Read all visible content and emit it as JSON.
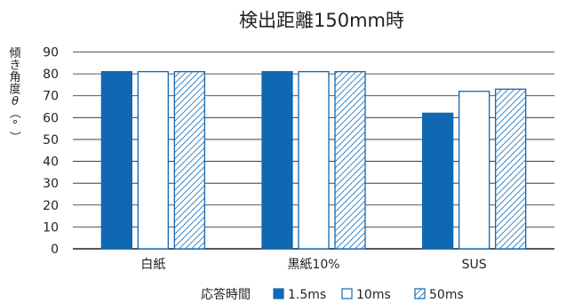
{
  "chart_data": {
    "type": "bar",
    "title": "検出距離150mm時",
    "ylabel": "傾き角度θ（°）",
    "categories": [
      "白紙",
      "黒紙10%",
      "SUS"
    ],
    "series": [
      {
        "name": "1.5ms",
        "values": [
          81,
          81,
          62
        ],
        "fill": "solid"
      },
      {
        "name": "10ms",
        "values": [
          81,
          81,
          72
        ],
        "fill": "outline"
      },
      {
        "name": "50ms",
        "values": [
          81,
          81,
          73
        ],
        "fill": "hatch"
      }
    ],
    "yticks": [
      0,
      10,
      20,
      30,
      40,
      50,
      60,
      70,
      80,
      90
    ],
    "ylim": [
      0,
      90
    ],
    "grid": true,
    "legend": {
      "title": "応答時間",
      "placement": "bottom"
    },
    "colors": {
      "accent": "#1068b3",
      "text": "#231f20",
      "grid": "#231f20"
    }
  }
}
